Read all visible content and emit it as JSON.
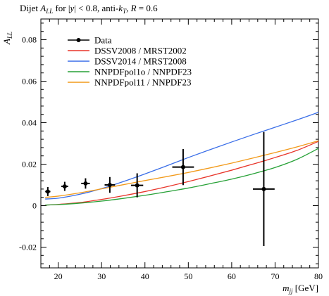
{
  "chart_data": {
    "type": "line",
    "title": "Dijet A_LL for |y| < 0.8, anti-k_T, R = 0.6",
    "title_parts": {
      "pre": "Dijet ",
      "all_main": "A",
      "all_sub": "LL",
      "mid1": " for |",
      "y": "y",
      "mid2": "| < 0.8, anti-",
      "k_main": "k",
      "k_sub": "T",
      "mid3": ", ",
      "R": "R",
      "post": " = 0.6"
    },
    "ylabel": "A_LL",
    "ylabel_parts": {
      "main": "A",
      "sub": "LL"
    },
    "xlabel": "m_jj [GeV]",
    "xlabel_parts": {
      "main": "m",
      "sub": "jj",
      "unit": " [GeV]"
    },
    "xlim": [
      16,
      80
    ],
    "ylim": [
      -0.03,
      0.09
    ],
    "x_ticks": [
      20,
      30,
      40,
      50,
      60,
      70,
      80
    ],
    "x_tick_labels": [
      "20",
      "30",
      "40",
      "50",
      "60",
      "70",
      "80"
    ],
    "y_ticks": [
      -0.02,
      0,
      0.02,
      0.04,
      0.06,
      0.08
    ],
    "y_tick_labels": [
      "-0.02",
      "0",
      "0.02",
      "0.04",
      "0.06",
      "0.08"
    ],
    "legend_position": "top-left",
    "data_points": {
      "name": "Data",
      "color": "#000000",
      "points": [
        {
          "x": 17.6,
          "y": 0.0068,
          "xerr": 0.6,
          "yerr": 0.0022
        },
        {
          "x": 21.5,
          "y": 0.0093,
          "xerr": 0.8,
          "yerr": 0.0022
        },
        {
          "x": 26.3,
          "y": 0.0107,
          "xerr": 1.0,
          "yerr": 0.0025
        },
        {
          "x": 31.9,
          "y": 0.01,
          "xerr": 1.2,
          "yerr": 0.0038
        },
        {
          "x": 38.2,
          "y": 0.0098,
          "xerr": 1.4,
          "yerr": 0.0058
        },
        {
          "x": 48.8,
          "y": 0.0186,
          "xerr": 2.5,
          "yerr": 0.0087
        },
        {
          "x": 67.4,
          "y": 0.008,
          "xerr": 2.5,
          "yerr": 0.0275
        }
      ]
    },
    "series": [
      {
        "name": "DSSV2008 / MRST2002",
        "color": "#e8352a",
        "x": [
          17,
          20,
          25,
          30,
          35,
          40,
          45,
          50,
          55,
          60,
          65,
          70,
          75,
          80
        ],
        "values": [
          0.0003,
          0.0006,
          0.0015,
          0.003,
          0.0048,
          0.0068,
          0.0091,
          0.0116,
          0.0143,
          0.0171,
          0.0201,
          0.0232,
          0.0266,
          0.031
        ]
      },
      {
        "name": "DSSV2014 / MRST2008",
        "color": "#3a6ee8",
        "x": [
          17,
          20,
          25,
          30,
          35,
          40,
          45,
          50,
          55,
          60,
          65,
          70,
          75,
          80
        ],
        "values": [
          0.0032,
          0.0036,
          0.0055,
          0.0082,
          0.0116,
          0.0153,
          0.0192,
          0.0232,
          0.027,
          0.0307,
          0.0343,
          0.0378,
          0.0413,
          0.045
        ]
      },
      {
        "name": "NNPDFpol1o / NNPDF23",
        "color": "#27a137",
        "x": [
          17,
          20,
          25,
          30,
          35,
          40,
          45,
          50,
          55,
          60,
          65,
          70,
          75,
          80
        ],
        "values": [
          0.0003,
          0.0005,
          0.0012,
          0.0022,
          0.0035,
          0.005,
          0.0067,
          0.0085,
          0.0106,
          0.0128,
          0.0154,
          0.0184,
          0.0223,
          0.0276
        ]
      },
      {
        "name": "NNPDFpol11 / NNPDF23",
        "color": "#f29a1a",
        "x": [
          17,
          20,
          25,
          30,
          35,
          40,
          45,
          50,
          55,
          60,
          65,
          70,
          75,
          80
        ],
        "values": [
          0.004,
          0.0046,
          0.0062,
          0.0081,
          0.0101,
          0.0121,
          0.014,
          0.016,
          0.0182,
          0.0205,
          0.023,
          0.0256,
          0.0283,
          0.0313
        ]
      }
    ],
    "legend": [
      "Data",
      "DSSV2008 / MRST2002",
      "DSSV2014 / MRST2008",
      "NNPDFpol1o / NNPDF23",
      "NNPDFpol11 / NNPDF23"
    ]
  }
}
